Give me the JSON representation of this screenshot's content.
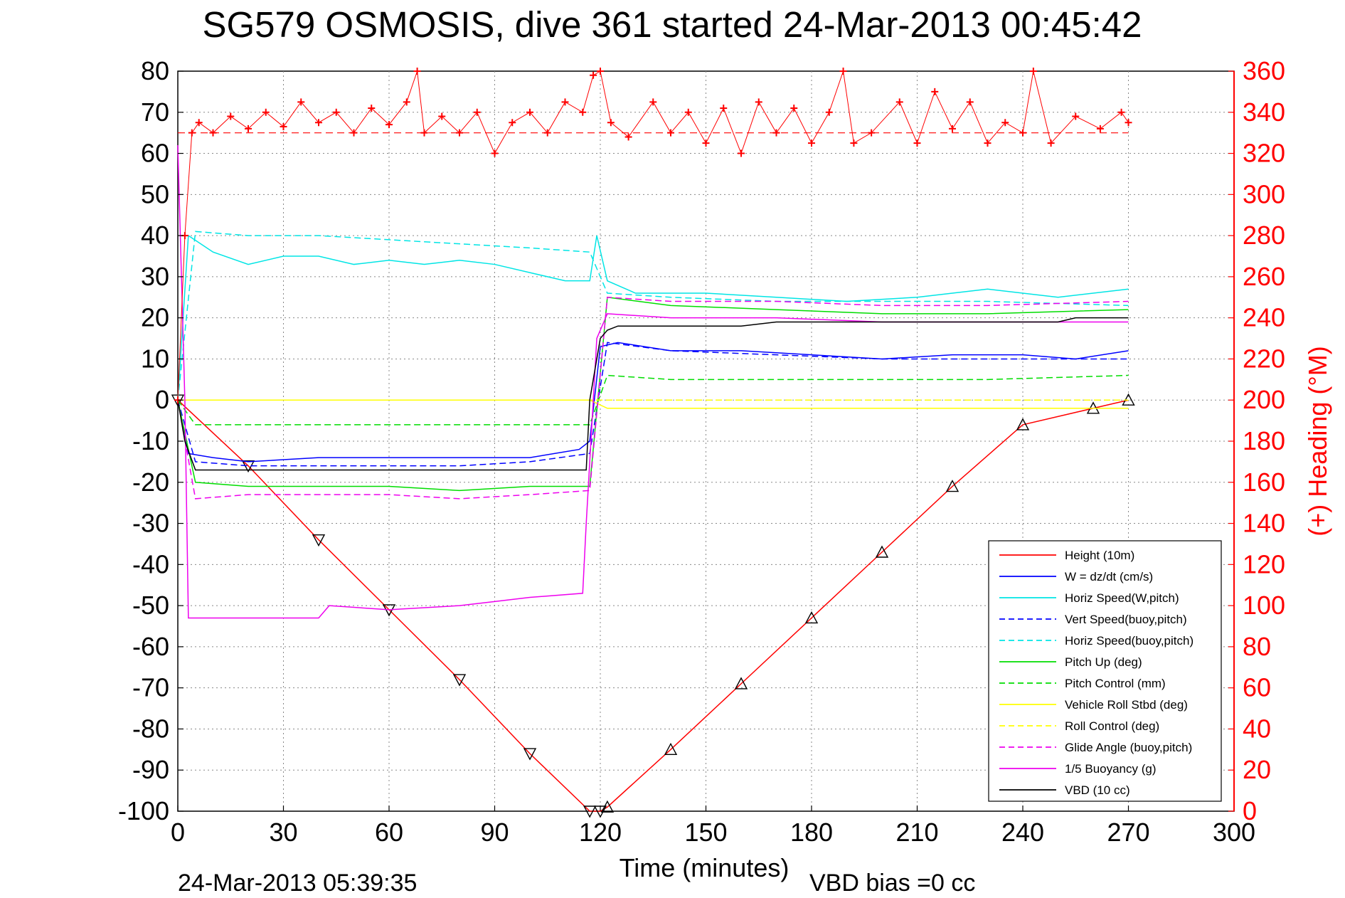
{
  "chart_data": {
    "type": "line",
    "title": "SG579 OSMOSIS, dive 361 started 24-Mar-2013 00:45:42",
    "xlabel": "Time (minutes)",
    "ylabel_right": "(+) Heading (°M)",
    "footer_left": "24-Mar-2013 05:39:35",
    "footer_right": "VBD bias =0 cc",
    "xlim": [
      0,
      300
    ],
    "ylim_left": [
      -100,
      80
    ],
    "ylim_right": [
      0,
      360
    ],
    "x_ticks": [
      0,
      30,
      60,
      90,
      120,
      150,
      180,
      210,
      240,
      270,
      300
    ],
    "y_ticks_left": [
      80,
      70,
      60,
      50,
      40,
      30,
      20,
      10,
      0,
      -10,
      -20,
      -30,
      -40,
      -50,
      -60,
      -70,
      -80,
      -90,
      -100
    ],
    "y_ticks_right": [
      360,
      340,
      320,
      300,
      280,
      260,
      240,
      220,
      200,
      180,
      160,
      140,
      120,
      100,
      80,
      60,
      40,
      20,
      0
    ],
    "grid": true,
    "legend_position": "bottom-right",
    "legend": [
      {
        "label": "Height (10m)",
        "color": "#ff0000",
        "style": "solid"
      },
      {
        "label": "W = dz/dt (cm/s)",
        "color": "#0000ff",
        "style": "solid"
      },
      {
        "label": "Horiz Speed(W,pitch)",
        "color": "#00e5e5",
        "style": "solid"
      },
      {
        "label": "Vert Speed(buoy,pitch)",
        "color": "#0000ff",
        "style": "dashed"
      },
      {
        "label": "Horiz Speed(buoy,pitch)",
        "color": "#00e5e5",
        "style": "dashed"
      },
      {
        "label": "Pitch Up (deg)",
        "color": "#00dd00",
        "style": "solid"
      },
      {
        "label": "Pitch Control (mm)",
        "color": "#00dd00",
        "style": "dashed"
      },
      {
        "label": "Vehicle Roll Stbd (deg)",
        "color": "#ffff00",
        "style": "solid"
      },
      {
        "label": "Roll Control (deg)",
        "color": "#ffff00",
        "style": "dashed"
      },
      {
        "label": "Glide Angle (buoy,pitch)",
        "color": "#ee00ee",
        "style": "dashed"
      },
      {
        "label": "1/5 Buoyancy (g)",
        "color": "#ee00ee",
        "style": "solid"
      },
      {
        "label": "VBD (10 cc)",
        "color": "#000000",
        "style": "solid"
      }
    ],
    "heading_reference": 330,
    "series": [
      {
        "name": "Height (10m)",
        "axis": "left",
        "color": "#ff0000",
        "style": "solid",
        "x": [
          0,
          20,
          40,
          60,
          80,
          100,
          117,
          120,
          122,
          140,
          160,
          180,
          200,
          220,
          240,
          260,
          270
        ],
        "y": [
          0,
          -16,
          -34,
          -51,
          -68,
          -86,
          -100,
          -100,
          -99,
          -85,
          -69,
          -53,
          -37,
          -21,
          -6,
          -2,
          0
        ]
      },
      {
        "name": "W = dz/dt (cm/s)",
        "axis": "left",
        "color": "#0000ff",
        "style": "solid",
        "x": [
          0,
          3,
          10,
          20,
          40,
          60,
          80,
          100,
          114,
          117,
          120,
          125,
          140,
          160,
          180,
          200,
          220,
          240,
          255,
          270
        ],
        "y": [
          0,
          -13,
          -14,
          -15,
          -14,
          -14,
          -14,
          -14,
          -12,
          -10,
          13,
          14,
          12,
          12,
          11,
          10,
          11,
          11,
          10,
          12
        ]
      },
      {
        "name": "Horiz Speed(W,pitch)",
        "axis": "left",
        "color": "#00e5e5",
        "style": "solid",
        "x": [
          0,
          3,
          10,
          20,
          30,
          40,
          50,
          60,
          70,
          80,
          90,
          100,
          110,
          117,
          119,
          122,
          130,
          150,
          170,
          190,
          210,
          230,
          250,
          270
        ],
        "y": [
          0,
          40,
          36,
          33,
          35,
          35,
          33,
          34,
          33,
          34,
          33,
          31,
          29,
          29,
          40,
          29,
          26,
          26,
          25,
          24,
          25,
          27,
          25,
          27
        ]
      },
      {
        "name": "Vert Speed(buoy,pitch)",
        "axis": "left",
        "color": "#0000ff",
        "style": "dashed",
        "x": [
          0,
          5,
          20,
          40,
          60,
          80,
          100,
          117,
          122,
          140,
          170,
          200,
          230,
          270
        ],
        "y": [
          0,
          -15,
          -16,
          -16,
          -16,
          -16,
          -15,
          -13,
          14,
          12,
          11,
          10,
          10,
          10
        ]
      },
      {
        "name": "Horiz Speed(buoy,pitch)",
        "axis": "left",
        "color": "#00e5e5",
        "style": "dashed",
        "x": [
          0,
          5,
          20,
          40,
          60,
          80,
          100,
          117,
          122,
          140,
          170,
          200,
          230,
          270
        ],
        "y": [
          0,
          41,
          40,
          40,
          39,
          38,
          37,
          36,
          26,
          25,
          24,
          24,
          24,
          23
        ]
      },
      {
        "name": "Pitch Up (deg)",
        "axis": "left",
        "color": "#00dd00",
        "style": "solid",
        "x": [
          0,
          5,
          20,
          40,
          60,
          80,
          100,
          117,
          122,
          140,
          170,
          200,
          230,
          270
        ],
        "y": [
          0,
          -20,
          -21,
          -21,
          -21,
          -22,
          -21,
          -21,
          25,
          23,
          22,
          21,
          21,
          22
        ]
      },
      {
        "name": "Pitch Control (mm)",
        "axis": "left",
        "color": "#00dd00",
        "style": "dashed",
        "x": [
          0,
          5,
          20,
          40,
          60,
          80,
          100,
          117,
          122,
          140,
          170,
          200,
          230,
          270
        ],
        "y": [
          0,
          -6,
          -6,
          -6,
          -6,
          -6,
          -6,
          -6,
          6,
          5,
          5,
          5,
          5,
          6
        ]
      },
      {
        "name": "Vehicle Roll Stbd (deg)",
        "axis": "left",
        "color": "#ffff00",
        "style": "solid",
        "x": [
          0,
          10,
          20,
          40,
          60,
          80,
          100,
          117,
          122,
          150,
          180,
          210,
          240,
          270
        ],
        "y": [
          0,
          0,
          0,
          0,
          0,
          0,
          0,
          0,
          -2,
          -2,
          -2,
          -2,
          -2,
          -2
        ]
      },
      {
        "name": "Roll Control (deg)",
        "axis": "left",
        "color": "#ffff00",
        "style": "dashed",
        "x": [
          0,
          10,
          20,
          40,
          60,
          80,
          100,
          117,
          122,
          150,
          180,
          210,
          240,
          270
        ],
        "y": [
          0,
          0,
          0,
          0,
          0,
          0,
          0,
          0,
          0,
          0,
          0,
          0,
          0,
          0
        ]
      },
      {
        "name": "Glide Angle (buoy,pitch)",
        "axis": "left",
        "color": "#ee00ee",
        "style": "dashed",
        "x": [
          0,
          5,
          20,
          40,
          60,
          80,
          100,
          117,
          122,
          140,
          170,
          200,
          230,
          270
        ],
        "y": [
          0,
          -24,
          -23,
          -23,
          -23,
          -24,
          -23,
          -22,
          25,
          24,
          24,
          23,
          23,
          24
        ]
      },
      {
        "name": "1/5 Buoyancy (g)",
        "axis": "left",
        "color": "#ee00ee",
        "style": "solid",
        "x": [
          0,
          2,
          3,
          20,
          40,
          43,
          60,
          80,
          90,
          100,
          115,
          116,
          119,
          122,
          140,
          170,
          200,
          230,
          265,
          270
        ],
        "y": [
          62,
          0,
          -53,
          -53,
          -53,
          -50,
          -51,
          -50,
          -49,
          -48,
          -47,
          -30,
          15,
          21,
          20,
          20,
          19,
          19,
          19,
          19
        ]
      },
      {
        "name": "VBD (10 cc)",
        "axis": "left",
        "color": "#000000",
        "style": "solid",
        "x": [
          0,
          2,
          5,
          30,
          60,
          90,
          116,
          117,
          120,
          122,
          125,
          140,
          160,
          170,
          190,
          220,
          250,
          255,
          270
        ],
        "y": [
          0,
          -10,
          -17,
          -17,
          -17,
          -17,
          -17,
          0,
          15,
          17,
          18,
          18,
          18,
          19,
          19,
          19,
          19,
          20,
          20
        ]
      },
      {
        "name": "(+) Heading (°M)",
        "axis": "right",
        "color": "#ff0000",
        "style": "markers",
        "x": [
          0,
          2,
          4,
          6,
          10,
          15,
          20,
          25,
          30,
          35,
          40,
          45,
          50,
          55,
          60,
          65,
          68,
          70,
          75,
          80,
          85,
          90,
          95,
          100,
          105,
          110,
          115,
          118,
          120,
          123,
          128,
          135,
          140,
          145,
          150,
          155,
          160,
          165,
          170,
          175,
          180,
          185,
          189,
          192,
          197,
          205,
          210,
          215,
          220,
          225,
          230,
          235,
          240,
          243,
          248,
          255,
          262,
          268,
          270
        ],
        "y": [
          200,
          280,
          330,
          335,
          330,
          338,
          332,
          340,
          333,
          345,
          335,
          340,
          330,
          342,
          334,
          345,
          360,
          330,
          338,
          330,
          340,
          320,
          335,
          340,
          330,
          345,
          340,
          358,
          360,
          335,
          328,
          345,
          330,
          340,
          325,
          342,
          320,
          345,
          330,
          342,
          325,
          340,
          360,
          325,
          330,
          345,
          325,
          350,
          332,
          345,
          325,
          335,
          330,
          360,
          325,
          338,
          332,
          340,
          335
        ]
      }
    ]
  }
}
